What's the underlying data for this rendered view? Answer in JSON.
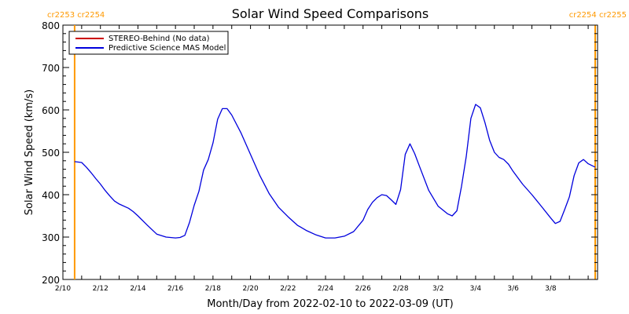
{
  "chart_data": {
    "type": "line",
    "title": "Solar Wind Speed Comparisons",
    "xlabel": "Month/Day from 2022-02-10 to 2022-03-09 (UT)",
    "ylabel": "Solar Wind Speed (km/s)",
    "xlim": [
      "2022-02-10T00:00",
      "2022-03-10T12:00"
    ],
    "ylim": [
      200,
      800
    ],
    "yticks": [
      200,
      300,
      400,
      500,
      600,
      700,
      800
    ],
    "xticks": [
      {
        "date": "2022-02-10",
        "label": "2/10"
      },
      {
        "date": "2022-02-12",
        "label": "2/12"
      },
      {
        "date": "2022-02-14",
        "label": "2/14"
      },
      {
        "date": "2022-02-16",
        "label": "2/16"
      },
      {
        "date": "2022-02-18",
        "label": "2/18"
      },
      {
        "date": "2022-02-20",
        "label": "2/20"
      },
      {
        "date": "2022-02-22",
        "label": "2/22"
      },
      {
        "date": "2022-02-24",
        "label": "2/24"
      },
      {
        "date": "2022-02-26",
        "label": "2/26"
      },
      {
        "date": "2022-02-28",
        "label": "2/28"
      },
      {
        "date": "2022-03-02",
        "label": "3/2"
      },
      {
        "date": "2022-03-04",
        "label": "3/4"
      },
      {
        "date": "2022-03-06",
        "label": "3/6"
      },
      {
        "date": "2022-03-08",
        "label": "3/8"
      }
    ],
    "grid": false,
    "legend_position": "top-left",
    "series": [
      {
        "name": "STEREO-Behind (No data)",
        "color": "#cc0000",
        "values": []
      },
      {
        "name": "Predictive Science MAS Model",
        "color": "#0000dd",
        "values": [
          [
            "2022-02-10T15:00",
            478
          ],
          [
            "2022-02-11T00:00",
            476
          ],
          [
            "2022-02-11T06:00",
            465
          ],
          [
            "2022-02-11T12:00",
            452
          ],
          [
            "2022-02-11T18:00",
            438
          ],
          [
            "2022-02-12T00:00",
            425
          ],
          [
            "2022-02-12T06:00",
            410
          ],
          [
            "2022-02-12T12:00",
            397
          ],
          [
            "2022-02-12T18:00",
            385
          ],
          [
            "2022-02-13T00:00",
            378
          ],
          [
            "2022-02-13T12:00",
            368
          ],
          [
            "2022-02-13T18:00",
            360
          ],
          [
            "2022-02-14T00:00",
            350
          ],
          [
            "2022-02-14T12:00",
            328
          ],
          [
            "2022-02-15T00:00",
            307
          ],
          [
            "2022-02-15T12:00",
            300
          ],
          [
            "2022-02-16T00:00",
            298
          ],
          [
            "2022-02-16T06:00",
            299
          ],
          [
            "2022-02-16T12:00",
            304
          ],
          [
            "2022-02-16T18:00",
            335
          ],
          [
            "2022-02-17T00:00",
            375
          ],
          [
            "2022-02-17T06:00",
            408
          ],
          [
            "2022-02-17T12:00",
            458
          ],
          [
            "2022-02-17T18:00",
            483
          ],
          [
            "2022-02-18T00:00",
            522
          ],
          [
            "2022-02-18T06:00",
            578
          ],
          [
            "2022-02-18T12:00",
            603
          ],
          [
            "2022-02-18T18:00",
            603
          ],
          [
            "2022-02-19T00:00",
            588
          ],
          [
            "2022-02-19T12:00",
            545
          ],
          [
            "2022-02-20T00:00",
            495
          ],
          [
            "2022-02-20T12:00",
            445
          ],
          [
            "2022-02-21T00:00",
            402
          ],
          [
            "2022-02-21T12:00",
            370
          ],
          [
            "2022-02-22T00:00",
            348
          ],
          [
            "2022-02-22T12:00",
            328
          ],
          [
            "2022-02-23T00:00",
            315
          ],
          [
            "2022-02-23T12:00",
            305
          ],
          [
            "2022-02-24T00:00",
            298
          ],
          [
            "2022-02-24T12:00",
            298
          ],
          [
            "2022-02-25T00:00",
            302
          ],
          [
            "2022-02-25T12:00",
            313
          ],
          [
            "2022-02-26T00:00",
            340
          ],
          [
            "2022-02-26T06:00",
            365
          ],
          [
            "2022-02-26T12:00",
            382
          ],
          [
            "2022-02-26T18:00",
            393
          ],
          [
            "2022-02-27T00:00",
            400
          ],
          [
            "2022-02-27T06:00",
            398
          ],
          [
            "2022-02-27T12:00",
            388
          ],
          [
            "2022-02-27T18:00",
            377
          ],
          [
            "2022-02-28T00:00",
            412
          ],
          [
            "2022-02-28T06:00",
            495
          ],
          [
            "2022-02-28T12:00",
            520
          ],
          [
            "2022-02-28T18:00",
            497
          ],
          [
            "2022-03-01T00:00",
            468
          ],
          [
            "2022-03-01T12:00",
            410
          ],
          [
            "2022-03-02T00:00",
            373
          ],
          [
            "2022-03-02T12:00",
            355
          ],
          [
            "2022-03-02T18:00",
            350
          ],
          [
            "2022-03-03T00:00",
            362
          ],
          [
            "2022-03-03T06:00",
            420
          ],
          [
            "2022-03-03T12:00",
            490
          ],
          [
            "2022-03-03T18:00",
            580
          ],
          [
            "2022-03-04T00:00",
            613
          ],
          [
            "2022-03-04T06:00",
            605
          ],
          [
            "2022-03-04T12:00",
            570
          ],
          [
            "2022-03-04T18:00",
            528
          ],
          [
            "2022-03-05T00:00",
            500
          ],
          [
            "2022-03-05T06:00",
            488
          ],
          [
            "2022-03-05T12:00",
            483
          ],
          [
            "2022-03-05T18:00",
            472
          ],
          [
            "2022-03-06T00:00",
            455
          ],
          [
            "2022-03-06T12:00",
            425
          ],
          [
            "2022-03-07T00:00",
            400
          ],
          [
            "2022-03-07T12:00",
            373
          ],
          [
            "2022-03-08T00:00",
            345
          ],
          [
            "2022-03-08T06:00",
            332
          ],
          [
            "2022-03-08T12:00",
            337
          ],
          [
            "2022-03-08T18:00",
            365
          ],
          [
            "2022-03-09T00:00",
            395
          ],
          [
            "2022-03-09T06:00",
            445
          ],
          [
            "2022-03-09T12:00",
            475
          ],
          [
            "2022-03-09T18:00",
            483
          ],
          [
            "2022-03-10T00:00",
            473
          ],
          [
            "2022-03-10T09:00",
            465
          ]
        ]
      }
    ],
    "carrington_markers": [
      {
        "date": "2022-02-10T15:00",
        "color": "#ff9900"
      },
      {
        "date": "2022-03-10T09:00",
        "color": "#ff9900"
      }
    ],
    "corner_labels": {
      "left": "cr2253 cr2254",
      "right": "cr2254 cr2255"
    }
  }
}
